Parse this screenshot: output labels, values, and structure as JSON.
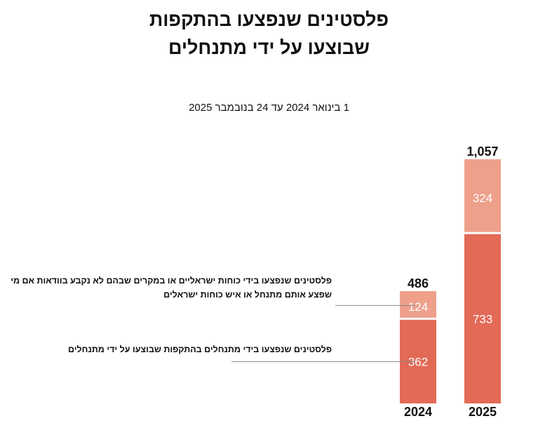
{
  "title_line1": "פלסטינים שנפצעו בהתקפות",
  "title_line2": "שבוצעו על ידי מתנחלים",
  "subtitle": "1 בינואר 2024 עד 24 בנובמבר 2025",
  "legend": {
    "top_label": "פלסטינים שנפצעו בידי כוחות ישראליים או במקרים שבהם לא נקבע בוודאות אם מי שפצע אותם מתנחל או איש כוחות ישראלים",
    "bottom_label": "פלסטינים שנפצעו בידי מתנחלים בהתקפות שבוצעו על ידי מתנחלים"
  },
  "colors": {
    "settlers": "#e26a56",
    "forces_or_unclear": "#eea08b",
    "text": "#111111",
    "label_on_bar": "#ffffff",
    "leader_line": "#888888"
  },
  "chart_data": {
    "type": "bar",
    "stacked": true,
    "title": "פלסטינים שנפצעו בהתקפות שבוצעו על ידי מתנחלים",
    "subtitle": "1 בינואר 2024 עד 24 בנובמבר 2025",
    "categories": [
      "2024",
      "2025"
    ],
    "series": [
      {
        "name": "פלסטינים שנפצעו בידי מתנחלים בהתקפות שבוצעו על ידי מתנחלים",
        "values": [
          362,
          733
        ],
        "color": "#e26a56"
      },
      {
        "name": "פלסטינים שנפצעו בידי כוחות ישראליים או במקרים שבהם לא נקבע בוודאות אם מי שפצע אותם מתנחל או איש כוחות ישראלים",
        "values": [
          124,
          324
        ],
        "color": "#eea08b"
      }
    ],
    "value_labels": [
      [
        "362",
        "733"
      ],
      [
        "124",
        "324"
      ]
    ],
    "totals": [
      486,
      1057
    ],
    "total_labels": [
      "486",
      "1,057"
    ],
    "ylim": [
      0,
      1057
    ],
    "xlabel": "",
    "ylabel": "",
    "grid": false
  }
}
